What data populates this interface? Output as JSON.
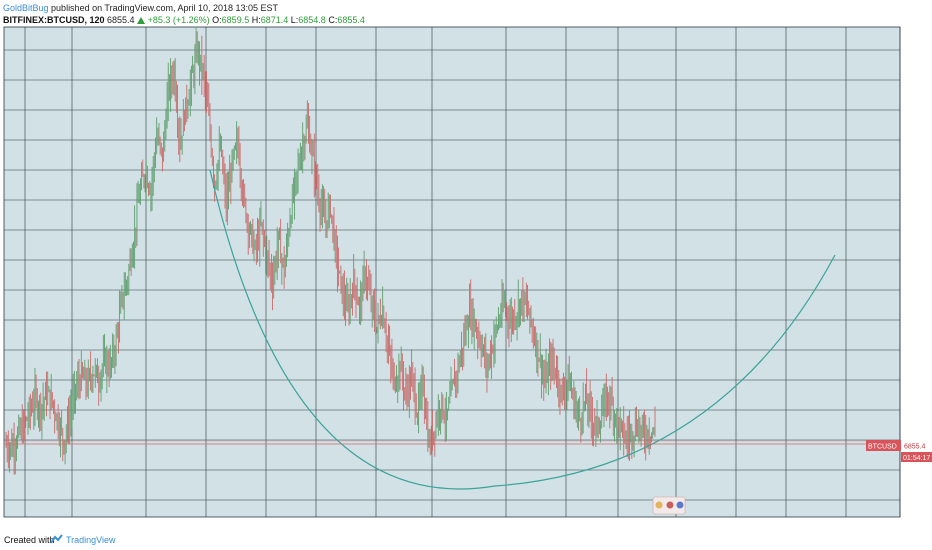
{
  "header": {
    "publisher": "GoldBitBug",
    "published_text": "published on TradingView.com, April 10, 2018 13:05 EST",
    "symbol": "BITFINEX:BTCUSD, 120",
    "last": "6855.4",
    "change": "+85.3 (+1.26%)",
    "o_label": "O:",
    "o_val": "6859.5",
    "h_label": "H:",
    "h_val": "6871.4",
    "l_label": "L:",
    "l_val": "6854.8",
    "c_label": "C:",
    "c_val": "6855.4"
  },
  "price_tag": {
    "symbol": "BTCUSD",
    "value": "6855.4",
    "countdown": "01:54:17"
  },
  "footer": {
    "created": "Created with",
    "brand": "TradingView"
  },
  "colors": {
    "background": "#d2e1e5",
    "grid": "#2d3a40",
    "candles": "#c96a6a",
    "candles_up": "#5e9e6e",
    "arc": "#3aa39a",
    "price_line": "#d36a6a",
    "tag": "#d9535a"
  },
  "chart_data": {
    "type": "line",
    "series": [
      {
        "values": [
          6.5,
          6.4,
          6.8,
          7.1,
          7.6,
          8.1,
          7.8,
          8.3,
          8.0,
          7.3,
          6.6,
          7.5,
          8.4,
          8.9,
          8.6,
          9.1,
          8.8,
          9.4,
          9.2,
          10.1,
          11.5,
          12.3,
          13.6,
          15.2,
          16.0,
          15.4,
          17.2,
          16.5,
          18.8,
          19.5,
          17.0,
          18.2,
          19.1,
          20.2,
          19.4,
          17.8,
          15.6,
          16.8,
          14.8,
          16.2,
          17.0,
          15.0,
          14.0,
          13.2,
          14.1,
          13.0,
          12.2,
          13.6,
          12.5,
          14.4,
          15.6,
          16.8,
          17.6,
          16.3,
          15.1,
          14.2,
          14.8,
          13.0,
          11.8,
          11.1,
          12.2,
          11.3,
          12.5,
          11.4,
          10.6,
          11.2,
          9.8,
          8.6,
          9.3,
          8.2,
          8.9,
          7.6,
          8.6,
          6.4,
          7.2,
          8.0,
          7.4,
          8.4,
          9.2,
          10.1,
          11.2,
          10.6,
          10.0,
          9.2,
          10.0,
          10.8,
          11.4,
          10.8,
          11.1,
          11.6,
          11.2,
          10.4,
          9.6,
          8.6,
          9.4,
          9.0,
          8.2,
          8.8,
          8.0,
          7.4,
          8.1,
          7.5,
          7.1,
          7.7,
          8.2,
          7.6,
          7.1,
          6.7,
          7.0,
          7.2,
          6.9,
          7.0,
          6.9
        ],
        "note": ""
      }
    ],
    "ylim": [
      4,
      21
    ],
    "grid": true
  }
}
